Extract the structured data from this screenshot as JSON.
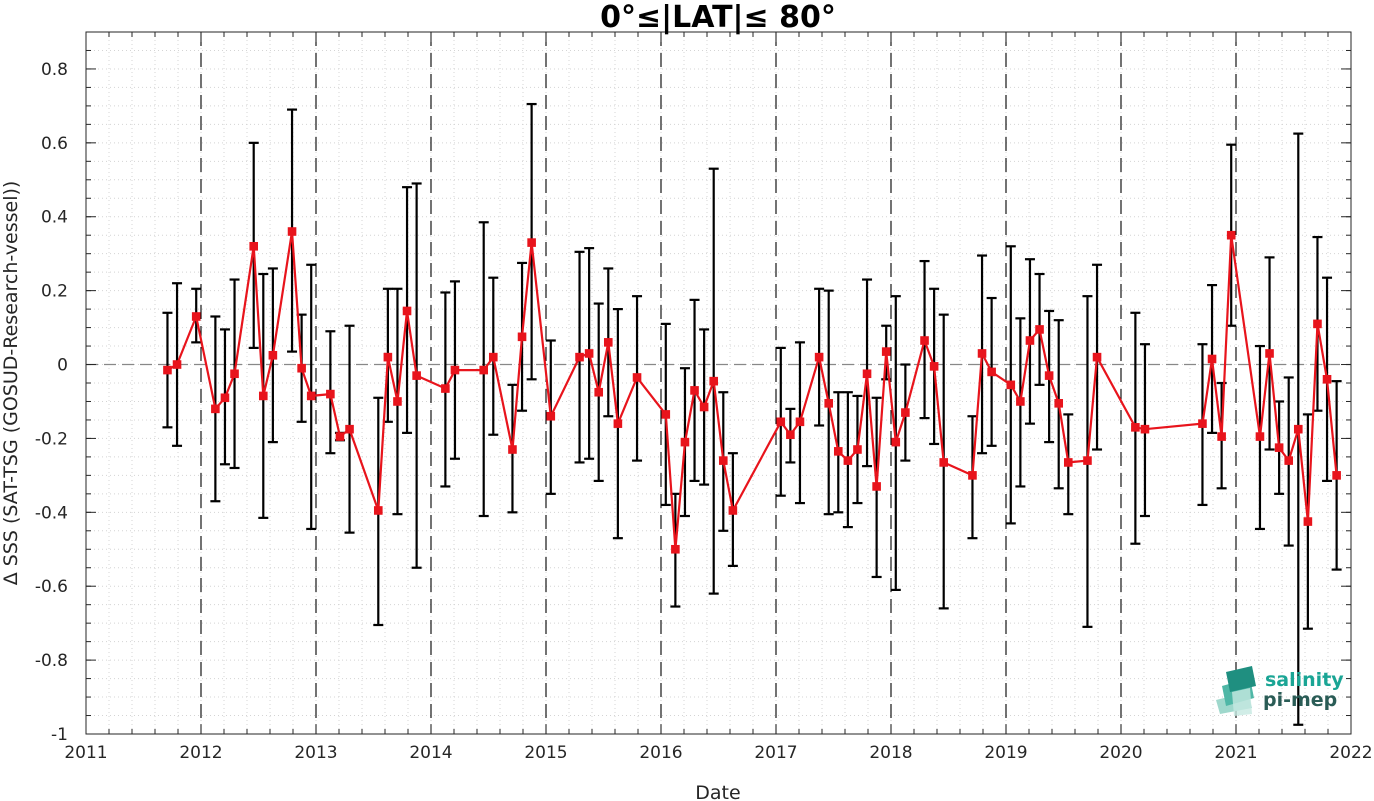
{
  "chart_data": {
    "type": "line",
    "title": "0°≤|LAT|≤ 80°",
    "xlabel": "Date",
    "ylabel": "Δ SSS (SAT-TSG (GOSUD-Research-vessel))",
    "xlim": [
      2011,
      2022
    ],
    "ylim": [
      -1,
      0.9
    ],
    "x_ticks": [
      "2011",
      "2012",
      "2013",
      "2014",
      "2015",
      "2016",
      "2017",
      "2018",
      "2019",
      "2020",
      "2021",
      "2022"
    ],
    "y_ticks": [
      "-1",
      "-0.8",
      "-0.6",
      "-0.4",
      "-0.2",
      "0",
      "0.2",
      "0.4",
      "0.6",
      "0.8"
    ],
    "grid": "minor dotted",
    "year_boundaries": [
      2012,
      2013,
      2014,
      2015,
      2016,
      2017,
      2018,
      2019,
      2020,
      2021
    ],
    "reference_line": 0,
    "colors": {
      "series": "#e8141c",
      "error_bars": "#000000",
      "logo_teal": "#1aa595",
      "logo_dark": "#2a5c56"
    },
    "series": [
      {
        "marker": "square",
        "points": [
          {
            "x": "2011-09",
            "y": -0.015,
            "lo": -0.17,
            "hi": 0.14
          },
          {
            "x": "2011-10",
            "y": 0.0,
            "lo": -0.22,
            "hi": 0.22
          },
          {
            "x": "2011-12",
            "y": 0.13,
            "lo": 0.06,
            "hi": 0.205
          },
          {
            "x": "2012-02",
            "y": -0.12,
            "lo": -0.37,
            "hi": 0.13
          },
          {
            "x": "2012-03",
            "y": -0.09,
            "lo": -0.27,
            "hi": 0.095
          },
          {
            "x": "2012-04",
            "y": -0.025,
            "lo": -0.28,
            "hi": 0.23
          },
          {
            "x": "2012-06",
            "y": 0.32,
            "lo": 0.045,
            "hi": 0.6
          },
          {
            "x": "2012-07",
            "y": -0.085,
            "lo": -0.415,
            "hi": 0.245
          },
          {
            "x": "2012-08",
            "y": 0.025,
            "lo": -0.21,
            "hi": 0.26
          },
          {
            "x": "2012-10",
            "y": 0.36,
            "lo": 0.035,
            "hi": 0.69
          },
          {
            "x": "2012-11",
            "y": -0.01,
            "lo": -0.155,
            "hi": 0.135
          },
          {
            "x": "2012-12",
            "y": -0.085,
            "lo": -0.445,
            "hi": 0.27
          },
          {
            "x": "2013-02",
            "y": -0.08,
            "lo": -0.24,
            "hi": 0.09
          },
          {
            "x": "2013-03",
            "y": -0.195,
            "lo": -0.205,
            "hi": -0.185
          },
          {
            "x": "2013-04",
            "y": -0.175,
            "lo": -0.455,
            "hi": 0.105
          },
          {
            "x": "2013-07",
            "y": -0.395,
            "lo": -0.705,
            "hi": -0.09
          },
          {
            "x": "2013-08",
            "y": 0.02,
            "lo": -0.155,
            "hi": 0.205
          },
          {
            "x": "2013-09",
            "y": -0.1,
            "lo": -0.405,
            "hi": 0.205
          },
          {
            "x": "2013-10",
            "y": 0.145,
            "lo": -0.185,
            "hi": 0.48
          },
          {
            "x": "2013-11",
            "y": -0.03,
            "lo": -0.55,
            "hi": 0.49
          },
          {
            "x": "2014-02",
            "y": -0.065,
            "lo": -0.33,
            "hi": 0.195
          },
          {
            "x": "2014-03",
            "y": -0.015,
            "lo": -0.255,
            "hi": 0.225
          },
          {
            "x": "2014-06",
            "y": -0.015,
            "lo": -0.41,
            "hi": 0.385
          },
          {
            "x": "2014-07",
            "y": 0.02,
            "lo": -0.19,
            "hi": 0.235
          },
          {
            "x": "2014-09",
            "y": -0.23,
            "lo": -0.4,
            "hi": -0.055
          },
          {
            "x": "2014-10",
            "y": 0.075,
            "lo": -0.125,
            "hi": 0.275
          },
          {
            "x": "2014-11",
            "y": 0.33,
            "lo": -0.04,
            "hi": 0.705
          },
          {
            "x": "2015-01",
            "y": -0.14,
            "lo": -0.35,
            "hi": 0.065
          },
          {
            "x": "2015-04",
            "y": 0.02,
            "lo": -0.265,
            "hi": 0.305
          },
          {
            "x": "2015-05",
            "y": 0.03,
            "lo": -0.255,
            "hi": 0.315
          },
          {
            "x": "2015-06",
            "y": -0.075,
            "lo": -0.315,
            "hi": 0.165
          },
          {
            "x": "2015-07",
            "y": 0.06,
            "lo": -0.14,
            "hi": 0.26
          },
          {
            "x": "2015-08",
            "y": -0.16,
            "lo": -0.47,
            "hi": 0.15
          },
          {
            "x": "2015-10",
            "y": -0.035,
            "lo": -0.26,
            "hi": 0.185
          },
          {
            "x": "2016-01",
            "y": -0.135,
            "lo": -0.38,
            "hi": 0.11
          },
          {
            "x": "2016-02",
            "y": -0.5,
            "lo": -0.655,
            "hi": -0.35
          },
          {
            "x": "2016-03",
            "y": -0.21,
            "lo": -0.41,
            "hi": -0.01
          },
          {
            "x": "2016-04",
            "y": -0.07,
            "lo": -0.315,
            "hi": 0.175
          },
          {
            "x": "2016-05",
            "y": -0.115,
            "lo": -0.325,
            "hi": 0.095
          },
          {
            "x": "2016-06",
            "y": -0.045,
            "lo": -0.62,
            "hi": 0.53
          },
          {
            "x": "2016-07",
            "y": -0.26,
            "lo": -0.45,
            "hi": -0.075
          },
          {
            "x": "2016-08",
            "y": -0.395,
            "lo": -0.545,
            "hi": -0.24
          },
          {
            "x": "2017-01",
            "y": -0.155,
            "lo": -0.355,
            "hi": 0.045
          },
          {
            "x": "2017-02",
            "y": -0.19,
            "lo": -0.265,
            "hi": -0.12
          },
          {
            "x": "2017-03",
            "y": -0.155,
            "lo": -0.375,
            "hi": 0.06
          },
          {
            "x": "2017-05",
            "y": 0.02,
            "lo": -0.165,
            "hi": 0.205
          },
          {
            "x": "2017-06",
            "y": -0.105,
            "lo": -0.405,
            "hi": 0.2
          },
          {
            "x": "2017-07",
            "y": -0.235,
            "lo": -0.4,
            "hi": -0.075
          },
          {
            "x": "2017-08",
            "y": -0.26,
            "lo": -0.44,
            "hi": -0.075
          },
          {
            "x": "2017-09",
            "y": -0.23,
            "lo": -0.375,
            "hi": -0.085
          },
          {
            "x": "2017-10",
            "y": -0.025,
            "lo": -0.275,
            "hi": 0.23
          },
          {
            "x": "2017-11",
            "y": -0.33,
            "lo": -0.575,
            "hi": -0.09
          },
          {
            "x": "2017-12",
            "y": 0.035,
            "lo": -0.04,
            "hi": 0.105
          },
          {
            "x": "2018-01",
            "y": -0.21,
            "lo": -0.61,
            "hi": 0.185
          },
          {
            "x": "2018-02",
            "y": -0.13,
            "lo": -0.26,
            "hi": 0.0
          },
          {
            "x": "2018-04",
            "y": 0.065,
            "lo": -0.145,
            "hi": 0.28
          },
          {
            "x": "2018-05",
            "y": -0.005,
            "lo": -0.215,
            "hi": 0.205
          },
          {
            "x": "2018-06",
            "y": -0.265,
            "lo": -0.66,
            "hi": 0.135
          },
          {
            "x": "2018-09",
            "y": -0.3,
            "lo": -0.47,
            "hi": -0.14
          },
          {
            "x": "2018-10",
            "y": 0.03,
            "lo": -0.24,
            "hi": 0.295
          },
          {
            "x": "2018-11",
            "y": -0.02,
            "lo": -0.22,
            "hi": 0.18
          },
          {
            "x": "2019-01",
            "y": -0.055,
            "lo": -0.43,
            "hi": 0.32
          },
          {
            "x": "2019-02",
            "y": -0.1,
            "lo": -0.33,
            "hi": 0.125
          },
          {
            "x": "2019-03",
            "y": 0.065,
            "lo": -0.16,
            "hi": 0.285
          },
          {
            "x": "2019-04",
            "y": 0.095,
            "lo": -0.055,
            "hi": 0.245
          },
          {
            "x": "2019-05",
            "y": -0.03,
            "lo": -0.21,
            "hi": 0.145
          },
          {
            "x": "2019-06",
            "y": -0.105,
            "lo": -0.335,
            "hi": 0.12
          },
          {
            "x": "2019-07",
            "y": -0.265,
            "lo": -0.405,
            "hi": -0.135
          },
          {
            "x": "2019-09",
            "y": -0.26,
            "lo": -0.71,
            "hi": 0.185
          },
          {
            "x": "2019-10",
            "y": 0.02,
            "lo": -0.23,
            "hi": 0.27
          },
          {
            "x": "2020-02",
            "y": -0.17,
            "lo": -0.485,
            "hi": 0.14
          },
          {
            "x": "2020-03",
            "y": -0.175,
            "lo": -0.41,
            "hi": 0.055
          },
          {
            "x": "2020-09",
            "y": -0.16,
            "lo": -0.38,
            "hi": 0.055
          },
          {
            "x": "2020-10",
            "y": 0.015,
            "lo": -0.185,
            "hi": 0.215
          },
          {
            "x": "2020-11",
            "y": -0.195,
            "lo": -0.335,
            "hi": -0.05
          },
          {
            "x": "2020-12",
            "y": 0.35,
            "lo": 0.105,
            "hi": 0.595
          },
          {
            "x": "2021-03",
            "y": -0.195,
            "lo": -0.445,
            "hi": 0.05
          },
          {
            "x": "2021-04",
            "y": 0.03,
            "lo": -0.23,
            "hi": 0.29
          },
          {
            "x": "2021-05",
            "y": -0.225,
            "lo": -0.35,
            "hi": -0.1
          },
          {
            "x": "2021-06",
            "y": -0.26,
            "lo": -0.49,
            "hi": -0.035
          },
          {
            "x": "2021-07",
            "y": -0.175,
            "lo": -0.975,
            "hi": 0.625
          },
          {
            "x": "2021-08",
            "y": -0.425,
            "lo": -0.715,
            "hi": -0.135
          },
          {
            "x": "2021-09",
            "y": 0.11,
            "lo": -0.125,
            "hi": 0.345
          },
          {
            "x": "2021-10",
            "y": -0.04,
            "lo": -0.315,
            "hi": 0.235
          },
          {
            "x": "2021-11",
            "y": -0.3,
            "lo": -0.555,
            "hi": -0.045
          }
        ]
      }
    ]
  },
  "logo": {
    "line1": "salinity",
    "line2": "pi-mep"
  }
}
